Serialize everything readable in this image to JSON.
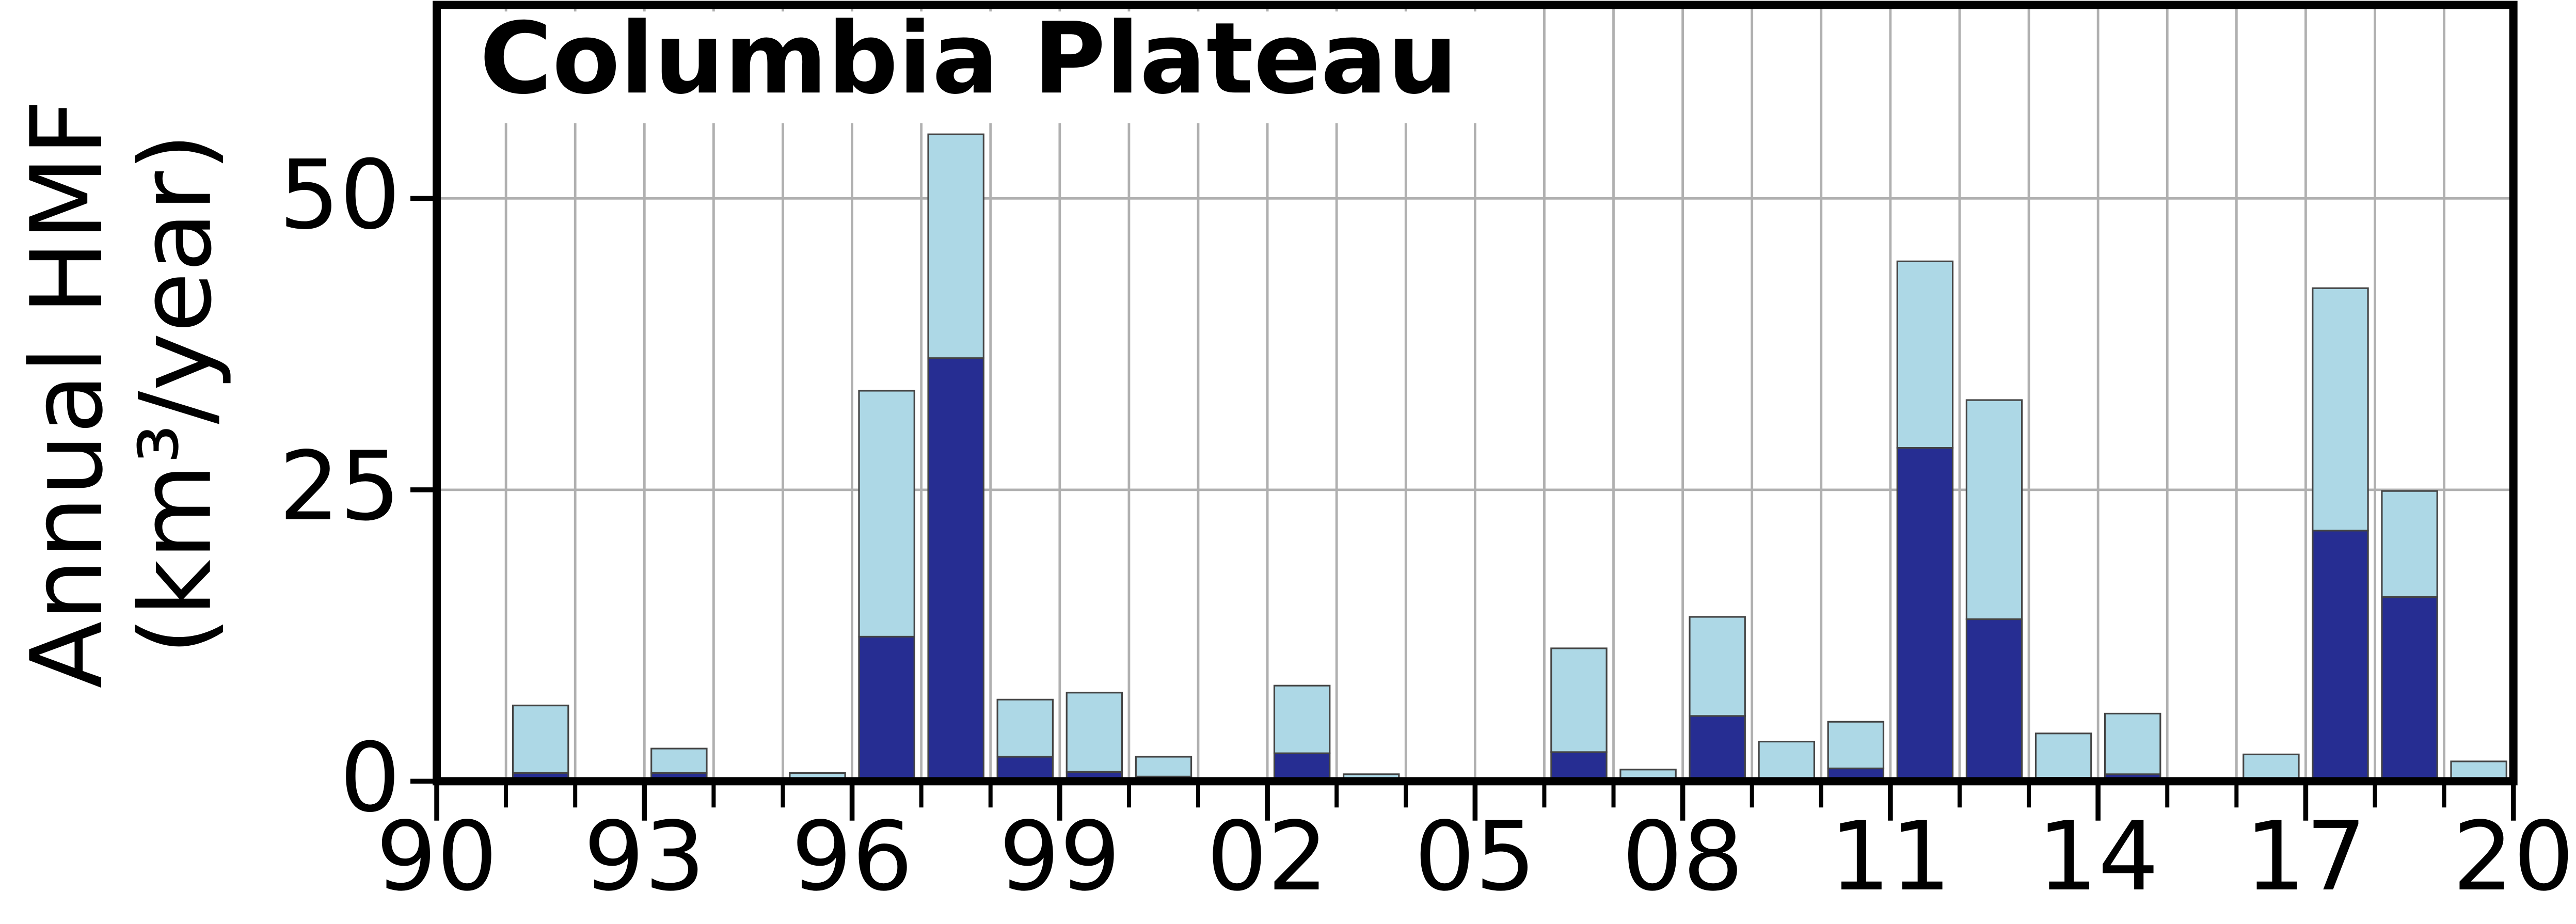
{
  "chart_data": {
    "type": "stacked-bar",
    "title": "Columbia Plateau",
    "ylabel": [
      "Annual HMF",
      "(km³/year)"
    ],
    "x": [
      1990,
      1991,
      1992,
      1993,
      1994,
      1995,
      1996,
      1997,
      1998,
      1999,
      2000,
      2001,
      2002,
      2003,
      2004,
      2005,
      2006,
      2007,
      2008,
      2009,
      2010,
      2011,
      2012,
      2013,
      2014,
      2015,
      2016,
      2017,
      2018,
      2019
    ],
    "series": [
      {
        "color": "#262d92",
        "values": [
          0,
          0.7,
          0,
          0.7,
          0,
          0,
          12.4,
          36.3,
          2.1,
          0.8,
          0.4,
          0,
          2.4,
          0,
          0,
          0,
          2.5,
          0,
          5.6,
          0,
          1.1,
          28.6,
          13.9,
          0.3,
          0.6,
          0,
          0,
          21.5,
          15.8,
          0
        ]
      },
      {
        "color": "#add8e6",
        "values": [
          0,
          5.8,
          0,
          2.1,
          0,
          0.7,
          21.1,
          19.2,
          4.9,
          6.8,
          1.7,
          0,
          5.8,
          0.6,
          0,
          0,
          8.9,
          1.0,
          8.5,
          3.4,
          4.0,
          16.0,
          18.8,
          3.8,
          5.2,
          0,
          2.3,
          20.8,
          9.1,
          1.7
        ]
      }
    ],
    "xlim": [
      1990,
      2020
    ],
    "xticks": [
      {
        "value": 1990,
        "label": "90"
      },
      {
        "value": 1993,
        "label": "93"
      },
      {
        "value": 1996,
        "label": "96"
      },
      {
        "value": 1999,
        "label": "99"
      },
      {
        "value": 2002,
        "label": "02"
      },
      {
        "value": 2005,
        "label": "05"
      },
      {
        "value": 2008,
        "label": "08"
      },
      {
        "value": 2011,
        "label": "11"
      },
      {
        "value": 2014,
        "label": "14"
      },
      {
        "value": 2017,
        "label": "17"
      },
      {
        "value": 2020,
        "label": "20"
      }
    ],
    "ylim": [
      0,
      66.6
    ],
    "yticks": [
      0,
      25,
      50
    ],
    "grid": true
  }
}
